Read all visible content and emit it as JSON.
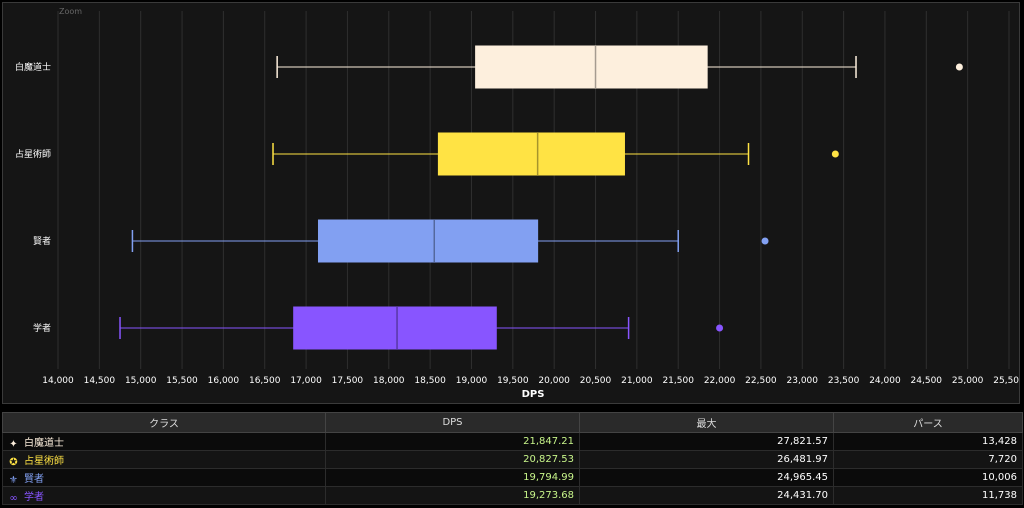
{
  "chart_data": {
    "type": "box",
    "orientation": "horizontal",
    "title": "",
    "xlabel": "DPS",
    "ylabel": "",
    "xlim": [
      14000,
      25500
    ],
    "xticks": [
      14000,
      14500,
      15000,
      15500,
      16000,
      16500,
      17000,
      17500,
      18000,
      18500,
      19000,
      19500,
      20000,
      20500,
      21000,
      21500,
      22000,
      22500,
      23000,
      23500,
      24000,
      24500,
      25000,
      25500
    ],
    "xtick_labels": [
      "14,000",
      "14,500",
      "15,000",
      "15,500",
      "16,000",
      "16,500",
      "17,000",
      "17,500",
      "18,000",
      "18,500",
      "19,000",
      "19,500",
      "20,000",
      "20,500",
      "21,000",
      "21,500",
      "22,000",
      "22,500",
      "23,000",
      "23,500",
      "24,000",
      "24,500",
      "25,000",
      "25,500"
    ],
    "grid": true,
    "categories": [
      "白魔道士",
      "占星術師",
      "賢者",
      "学者"
    ],
    "series": [
      {
        "category": "白魔道士",
        "color": "#fdefdd",
        "min": 16650,
        "q1": 19050,
        "median": 20500,
        "q3": 21850,
        "max": 23650,
        "outliers": [
          24900
        ]
      },
      {
        "category": "占星術師",
        "color": "#ffe344",
        "min": 16600,
        "q1": 18600,
        "median": 19800,
        "q3": 20850,
        "max": 22350,
        "outliers": [
          23400
        ]
      },
      {
        "category": "賢者",
        "color": "#82a0f2",
        "min": 14900,
        "q1": 17150,
        "median": 18550,
        "q3": 19800,
        "max": 21500,
        "outliers": [
          22550
        ]
      },
      {
        "category": "学者",
        "color": "#8855ff",
        "min": 14750,
        "q1": 16850,
        "median": 18100,
        "q3": 19300,
        "max": 20900,
        "outliers": [
          22000
        ]
      }
    ]
  },
  "chart_header": {
    "zoom_label": "Zoom"
  },
  "table": {
    "headers": {
      "class": "クラス",
      "dps": "DPS",
      "max": "最大",
      "parse": "パース"
    },
    "rows": [
      {
        "icon": "white-mage-icon",
        "glyph": "✦",
        "color": "#fdefdd",
        "class": "白魔道士",
        "dps": "21,847.21",
        "max": "27,821.57",
        "parse": "13,428"
      },
      {
        "icon": "astrologian-icon",
        "glyph": "✪",
        "color": "#ffe344",
        "class": "占星術師",
        "dps": "20,827.53",
        "max": "26,481.97",
        "parse": "7,720"
      },
      {
        "icon": "sage-icon",
        "glyph": "⚜",
        "color": "#82a0f2",
        "class": "賢者",
        "dps": "19,794.99",
        "max": "24,965.45",
        "parse": "10,006"
      },
      {
        "icon": "scholar-icon",
        "glyph": "∞",
        "color": "#8855ff",
        "class": "学者",
        "dps": "19,273.68",
        "max": "24,431.70",
        "parse": "11,738"
      }
    ]
  }
}
